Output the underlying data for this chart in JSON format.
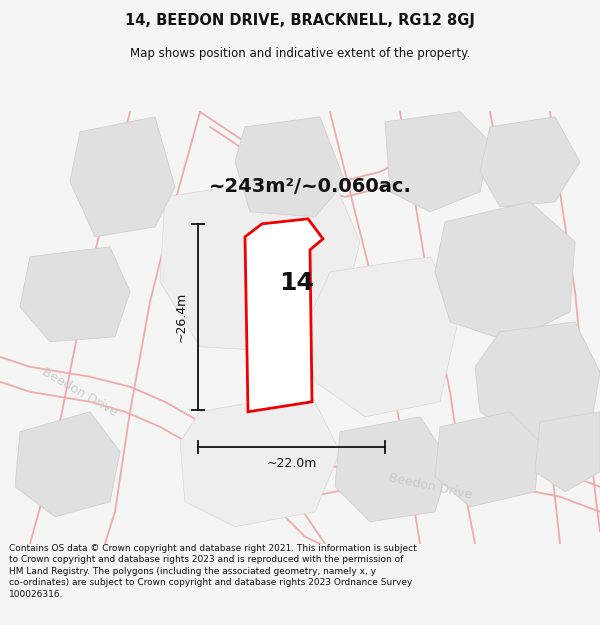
{
  "title": "14, BEEDON DRIVE, BRACKNELL, RG12 8GJ",
  "subtitle": "Map shows position and indicative extent of the property.",
  "area_text": "~243m²/~0.060ac.",
  "label_14": "14",
  "dim_width": "~22.0m",
  "dim_height": "~26.4m",
  "street_label_left": "Beedon Drive",
  "street_label_right": "Beedon Drive",
  "footer_line1": "Contains OS data © Crown copyright and database right 2021. This information is subject",
  "footer_line2": "to Crown copyright and database rights 2023 and is reproduced with the permission of",
  "footer_line3": "HM Land Registry. The polygons (including the associated geometry, namely x, y",
  "footer_line4": "co-ordinates) are subject to Crown copyright and database rights 2023 Ordnance Survey",
  "footer_line5": "100026316.",
  "bg_color": "#f5f5f5",
  "map_bg": "#ffffff",
  "plot_fill": "#ffffff",
  "plot_edge": "#ee0000",
  "building_fill": "#e0e0e0",
  "building_edge": "#d0d0d0",
  "road_fill": "#f5f5f5",
  "road_line_color": "#f0aaaa",
  "dim_color": "#111111",
  "text_color": "#111111",
  "street_color_left": "#cccccc",
  "street_color_right": "#cccccc",
  "title_fontsize": 10.5,
  "subtitle_fontsize": 8.5,
  "area_fontsize": 14,
  "label_fontsize": 18,
  "dim_fontsize": 9,
  "street_fontsize": 9,
  "footer_fontsize": 6.5
}
